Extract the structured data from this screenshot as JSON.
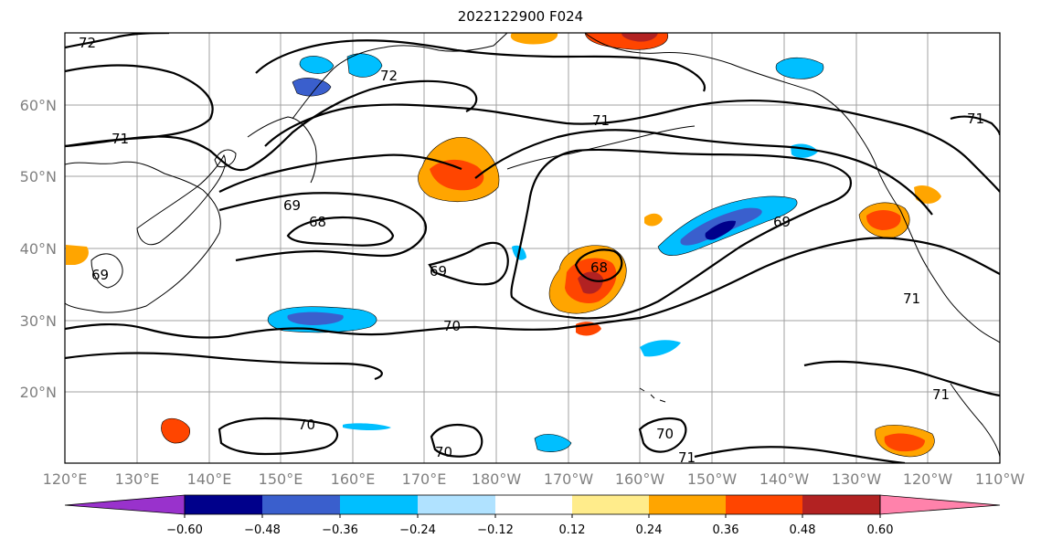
{
  "title": "2022122900 F024",
  "map": {
    "lon_labels": [
      "120°E",
      "130°E",
      "140°E",
      "150°E",
      "160°E",
      "170°E",
      "180°W",
      "170°W",
      "160°W",
      "150°W",
      "140°W",
      "130°W",
      "120°W",
      "110°W"
    ],
    "lat_labels": [
      "20°N",
      "30°N",
      "40°N",
      "50°N",
      "60°N"
    ],
    "contour_labels": [
      "72",
      "71",
      "72",
      "69",
      "68",
      "69",
      "70",
      "70",
      "70",
      "71",
      "71",
      "71",
      "71",
      "70",
      "68",
      "69",
      "69",
      "71"
    ]
  },
  "colorbar": {
    "colors": [
      "#9932cc",
      "#00008b",
      "#3a5fcd",
      "#00bfff",
      "#b0e2ff",
      "#ffffff",
      "#ffec8b",
      "#ffa500",
      "#ff4500",
      "#b22222",
      "#ff82ab"
    ],
    "tick_labels": [
      "−0.60",
      "−0.48",
      "−0.36",
      "−0.24",
      "−0.12",
      "0.12",
      "0.24",
      "0.36",
      "0.48",
      "0.60"
    ]
  }
}
